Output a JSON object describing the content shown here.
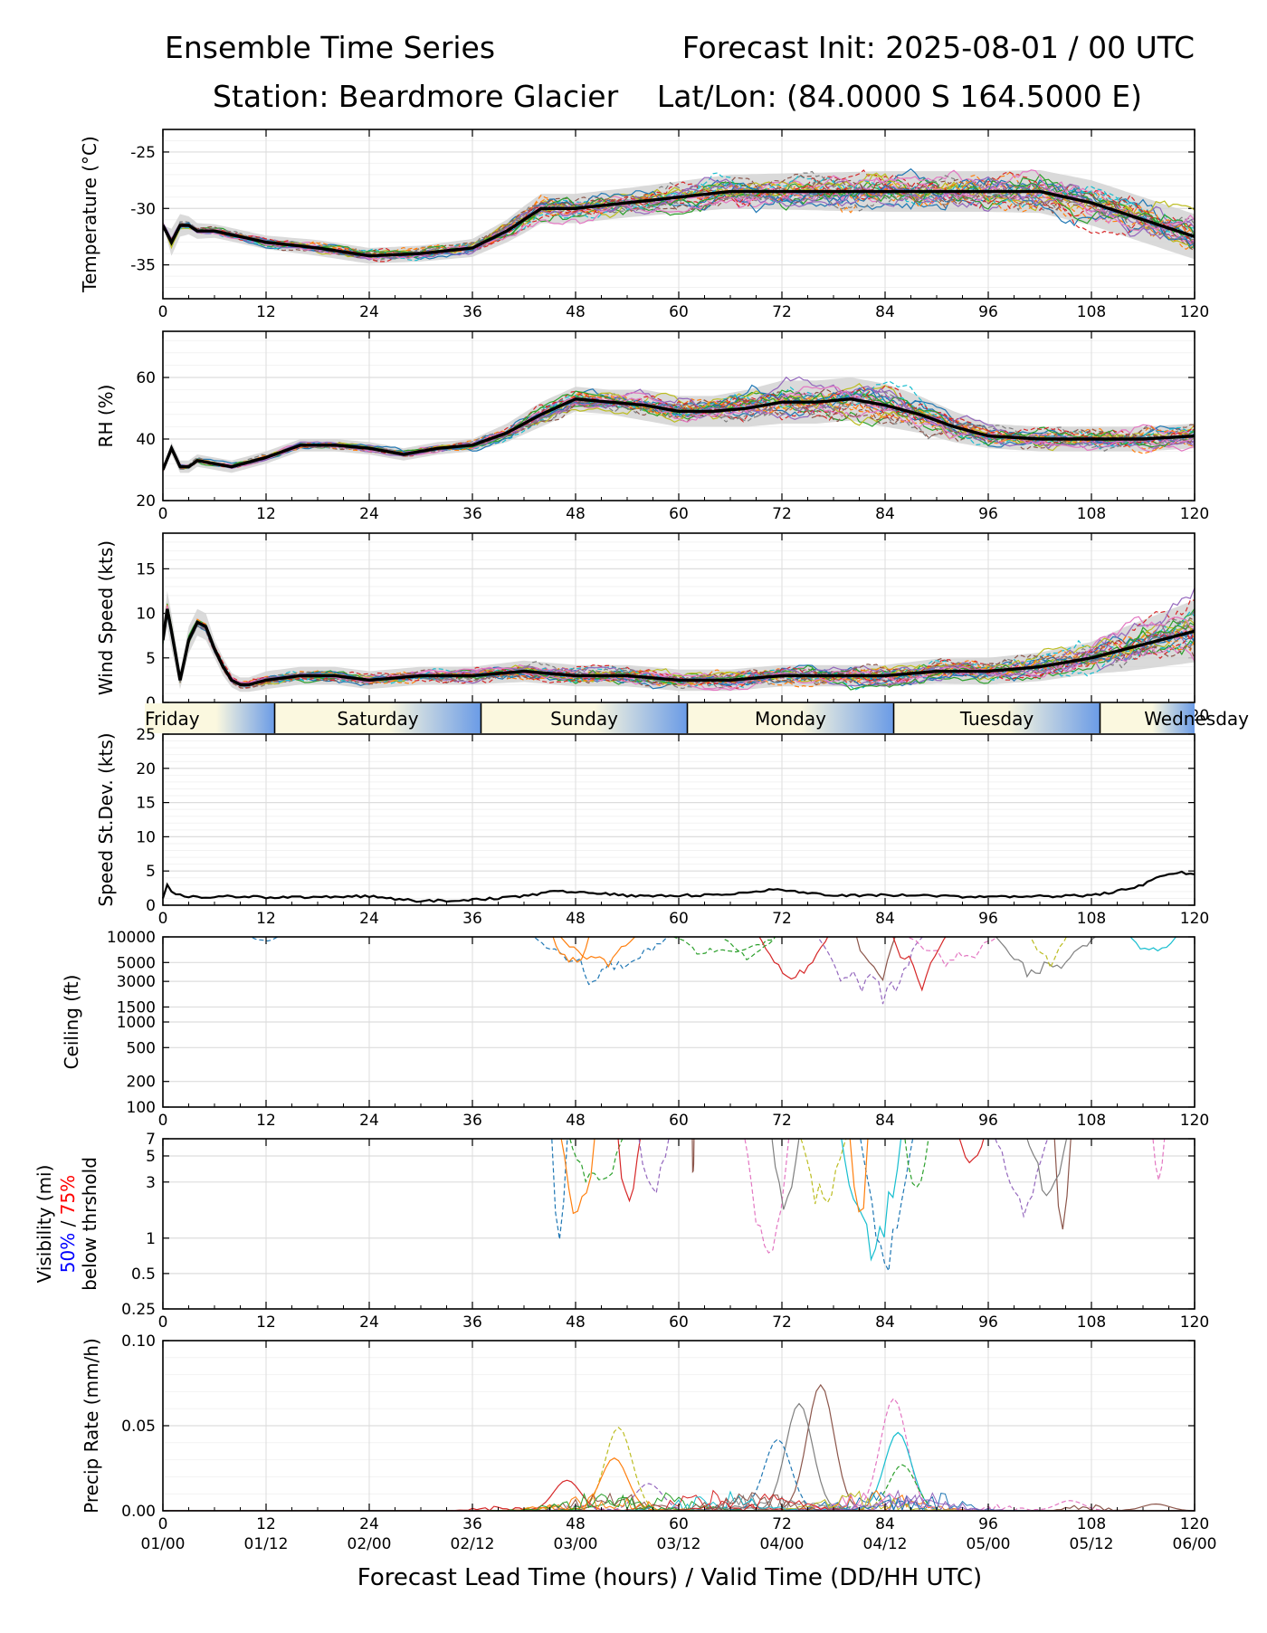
{
  "header": {
    "title": "Ensemble Time Series",
    "init": "Forecast Init: 2025-08-01 / 00 UTC",
    "station": "Station: Beardmore Glacier",
    "latlon": "Lat/Lon: (84.0000 S 164.5000 E)"
  },
  "x_axis": {
    "label": "Forecast Lead Time (hours) / Valid Time (DD/HH UTC)",
    "ticks": [
      0,
      12,
      24,
      36,
      48,
      60,
      72,
      84,
      96,
      108,
      120
    ],
    "valid_times": [
      "01/00",
      "01/12",
      "02/00",
      "02/12",
      "03/00",
      "03/12",
      "04/00",
      "04/12",
      "05/00",
      "05/12",
      "06/00"
    ]
  },
  "day_bar": {
    "days": [
      "Friday",
      "Saturday",
      "Sunday",
      "Monday",
      "Tuesday",
      "Wednesday"
    ],
    "boundaries_hours": [
      13,
      37,
      61,
      85,
      109
    ]
  },
  "visibility_label": {
    "line1": "Visibility (mi)",
    "pct50": "50%",
    "sep": " / ",
    "pct75": "75%",
    "line3": "below thrshold",
    "color50": "#0000ff",
    "color75": "#ff0000"
  },
  "colors": {
    "mean": "#000000",
    "spread": "#d3d3d3",
    "members": [
      "#1f77b4",
      "#ff7f0e",
      "#2ca02c",
      "#d62728",
      "#9467bd",
      "#8c564b",
      "#e377c2",
      "#7f7f7f",
      "#bcbd22",
      "#17becf"
    ],
    "day_gradient": [
      "#fbf8df",
      "#6a9be6"
    ]
  },
  "chart_data": [
    {
      "type": "line",
      "ylabel": "Temperature (°C)",
      "ylim": [
        -38,
        -23
      ],
      "yticks": [
        -35,
        -30,
        -25
      ],
      "xlim": [
        0,
        120
      ],
      "grid": true,
      "mean": {
        "x": [
          0,
          1,
          2,
          3,
          4,
          6,
          9,
          12,
          18,
          24,
          30,
          36,
          40,
          42,
          44,
          46,
          48,
          54,
          60,
          66,
          72,
          78,
          84,
          90,
          96,
          102,
          108,
          114,
          120
        ],
        "y": [
          -31.5,
          -33,
          -31.5,
          -31.5,
          -32,
          -32,
          -32.5,
          -33,
          -33.5,
          -34.2,
          -34,
          -33.5,
          -32,
          -31,
          -30,
          -30,
          -30,
          -29.5,
          -29,
          -28.5,
          -28.5,
          -28.5,
          -28.5,
          -28.5,
          -28.5,
          -28.5,
          -29.5,
          -31,
          -32.5
        ]
      },
      "spread_width": [
        0,
        1.2,
        1.0,
        0.8,
        0.7,
        0.6,
        0.6,
        0.6,
        0.7,
        0.7,
        0.7,
        0.8,
        1.0,
        1.2,
        1.3,
        1.3,
        1.3,
        1.3,
        1.4,
        1.5,
        1.6,
        1.7,
        1.8,
        1.8,
        1.8,
        1.9,
        2.0,
        2.0,
        2.0
      ],
      "member_count": 28,
      "member_noise": 1.6
    },
    {
      "type": "line",
      "ylabel": "RH (%)",
      "ylim": [
        20,
        75
      ],
      "yticks": [
        20,
        40,
        60
      ],
      "xlim": [
        0,
        120
      ],
      "grid": true,
      "mean": {
        "x": [
          0,
          1,
          2,
          3,
          4,
          6,
          8,
          12,
          16,
          20,
          24,
          28,
          32,
          36,
          40,
          44,
          48,
          52,
          56,
          60,
          64,
          68,
          72,
          76,
          80,
          84,
          88,
          92,
          96,
          102,
          108,
          114,
          120
        ],
        "y": [
          30,
          37,
          31,
          31,
          33,
          32,
          31,
          34,
          38,
          38,
          37,
          35,
          37,
          38,
          42,
          48,
          53,
          52,
          51,
          49,
          49,
          50,
          52,
          52,
          53,
          51,
          48,
          44,
          41,
          40,
          40,
          40,
          41
        ]
      },
      "spread_width": [
        0,
        2,
        2,
        2,
        2,
        2,
        2,
        2,
        2,
        2,
        2,
        2,
        2,
        2,
        3,
        4,
        4,
        4,
        5,
        5,
        5,
        6,
        7,
        7,
        7,
        7,
        6,
        5,
        4,
        4,
        4,
        4,
        4
      ],
      "member_count": 28,
      "member_noise": 4
    },
    {
      "type": "line",
      "ylabel": "Wind Speed (kts)",
      "ylim": [
        0,
        19
      ],
      "yticks": [
        0,
        5,
        10,
        15
      ],
      "xlim": [
        0,
        120
      ],
      "grid": true,
      "mean": {
        "x": [
          0,
          0.5,
          1,
          2,
          3,
          4,
          5,
          6,
          7,
          8,
          9,
          10,
          12,
          16,
          20,
          24,
          30,
          36,
          42,
          48,
          54,
          60,
          66,
          72,
          78,
          84,
          90,
          96,
          102,
          108,
          112,
          116,
          120
        ],
        "y": [
          7,
          10.5,
          8,
          2.5,
          7,
          9,
          8.5,
          6,
          4,
          2.5,
          2,
          2,
          2.5,
          3,
          3,
          2.5,
          3,
          3,
          3.5,
          3,
          3,
          2.5,
          2.5,
          3,
          3,
          3,
          3.5,
          3.5,
          4,
          5,
          6,
          7,
          8
        ]
      },
      "spread_width": [
        1,
        2,
        2,
        1,
        1.5,
        1.5,
        1.5,
        1,
        1,
        0.8,
        0.8,
        0.8,
        1,
        1,
        1,
        1,
        1,
        1,
        1.2,
        1.2,
        1.2,
        1.2,
        1.2,
        1.2,
        1.2,
        1.2,
        1.4,
        1.5,
        1.6,
        1.8,
        2.5,
        3,
        3.5
      ],
      "member_count": 28,
      "member_noise": 1.6
    },
    {
      "type": "line",
      "ylabel": "Speed St.Dev. (kts)",
      "ylim": [
        0,
        25
      ],
      "yticks": [
        0,
        5,
        10,
        15,
        20,
        25
      ],
      "xlim": [
        0,
        120
      ],
      "grid": true,
      "series": [
        {
          "x": [
            0,
            0.5,
            1,
            2,
            3,
            6,
            9,
            12,
            18,
            24,
            30,
            36,
            42,
            45,
            48,
            54,
            60,
            66,
            70,
            72,
            78,
            84,
            90,
            96,
            102,
            108,
            111,
            114,
            116,
            118,
            120
          ],
          "y": [
            1,
            3,
            2,
            1.5,
            1.2,
            1.2,
            1.3,
            1.1,
            1.2,
            1.3,
            0.6,
            0.8,
            1.3,
            2,
            2,
            1.4,
            1.4,
            1.6,
            2.2,
            2.3,
            1.4,
            1.5,
            1.3,
            1.2,
            1.3,
            1.4,
            2,
            3,
            4.3,
            4.8,
            4.6
          ]
        }
      ]
    },
    {
      "type": "line",
      "ylabel": "Ceiling (ft)",
      "yscale": "log",
      "ylim": [
        100,
        10000
      ],
      "yticks": [
        100,
        200,
        500,
        1000,
        1500,
        3000,
        5000,
        10000
      ],
      "xlim": [
        0,
        120
      ],
      "grid": true,
      "member_count": 14
    },
    {
      "type": "line",
      "ylabel": "Visibility (mi)",
      "yscale": "log",
      "ylim": [
        0.25,
        7
      ],
      "yticks": [
        0.25,
        0.5,
        1,
        3,
        5,
        7
      ],
      "xlim": [
        0,
        120
      ],
      "grid": true,
      "member_count": 18
    },
    {
      "type": "line",
      "ylabel": "Precip Rate (mm/h)",
      "ylim": [
        0,
        0.1
      ],
      "yticks": [
        0.0,
        0.05,
        0.1
      ],
      "ytick_labels": [
        "0.00",
        "0.05",
        "0.10"
      ],
      "xlim": [
        0,
        120
      ],
      "grid": true,
      "member_peaks": [
        {
          "x": 76.5,
          "y": 0.074
        },
        {
          "x": 85,
          "y": 0.066
        },
        {
          "x": 74,
          "y": 0.063
        },
        {
          "x": 53,
          "y": 0.049
        },
        {
          "x": 85.5,
          "y": 0.046
        },
        {
          "x": 71.5,
          "y": 0.042
        },
        {
          "x": 52.5,
          "y": 0.031
        },
        {
          "x": 86,
          "y": 0.027
        },
        {
          "x": 47,
          "y": 0.018
        },
        {
          "x": 56.5,
          "y": 0.016
        },
        {
          "x": 115.5,
          "y": 0.004
        },
        {
          "x": 105.5,
          "y": 0.006
        }
      ]
    }
  ]
}
